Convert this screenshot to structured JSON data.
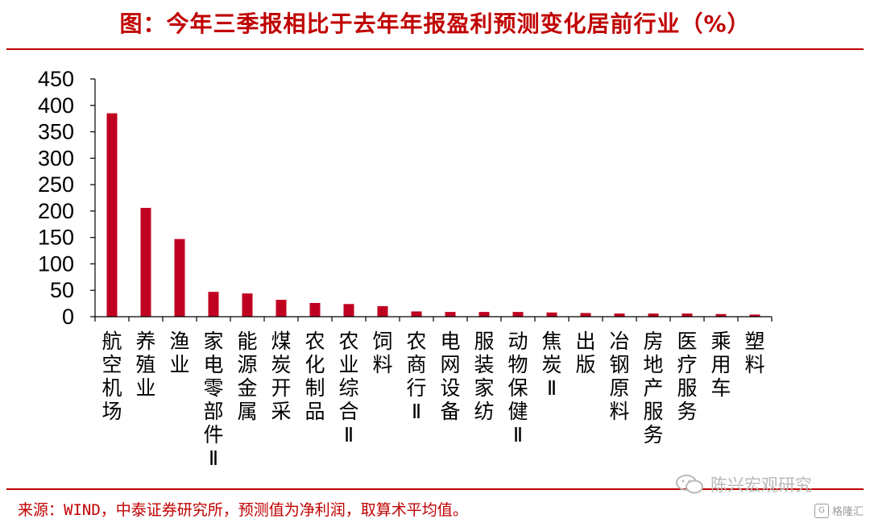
{
  "title": "图：今年三季报相比于去年年报盈利预测变化居前行业（%）",
  "source": "来源：WIND，中泰证券研究所，预测值为净利润，取算术平均值。",
  "watermark": "陈兴宏观研究",
  "badge": "格隆汇",
  "colors": {
    "accent": "#c00000",
    "bar": "#c00020"
  },
  "chart_data": {
    "type": "bar",
    "categories": [
      "航空机场",
      "养殖业",
      "渔业",
      "家电零部件Ⅱ",
      "能源金属",
      "煤炭开采",
      "农化制品",
      "农业综合Ⅱ",
      "饲料",
      "农商行Ⅱ",
      "电网设备",
      "服装家纺",
      "动物保健Ⅱ",
      "焦炭Ⅱ",
      "出版",
      "冶钢原料",
      "房地产服务",
      "医疗服务",
      "乘用车",
      "塑料"
    ],
    "values": [
      385,
      206,
      147,
      47,
      44,
      32,
      26,
      24,
      20,
      10,
      9,
      9,
      9,
      8,
      7,
      6,
      6,
      6,
      5,
      4
    ],
    "ylim": [
      0,
      450
    ],
    "yticks": [
      0,
      50,
      100,
      150,
      200,
      250,
      300,
      350,
      400,
      450
    ],
    "grid": false,
    "legend": "none"
  }
}
